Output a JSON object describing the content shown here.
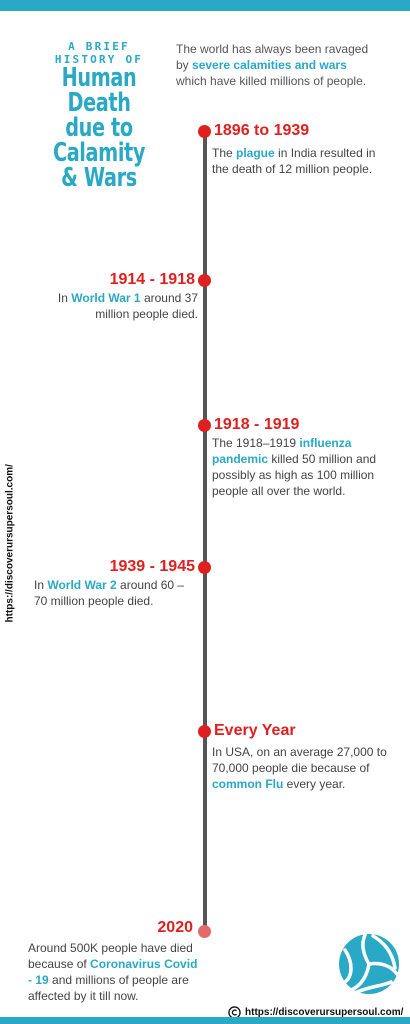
{
  "header": {
    "title_small": "A BRIEF HISTORY OF",
    "title_line1": "Human Death",
    "title_line2": "due to Calamity",
    "title_line3": "& Wars"
  },
  "intro": {
    "pre": "The world has always been ravaged by ",
    "highlight": "severe calamities and wars",
    "post": " which have killed millions of people."
  },
  "events": [
    {
      "year": "1896 to 1939",
      "pre": "The ",
      "highlight": "plague",
      "post": " in India resulted in the death of 12 million people."
    },
    {
      "year": "1914 - 1918",
      "pre": "In ",
      "highlight": "World War 1",
      "post": " around 37 million people died."
    },
    {
      "year": "1918 - 1919",
      "pre": "The 1918–1919 ",
      "highlight": "influenza pandemic",
      "post": " killed 50 million and possibly as high as 100 million people all over the world."
    },
    {
      "year": "1939 - 1945",
      "pre": "In ",
      "highlight": "World War 2",
      "post": " around 60 – 70 million people died."
    },
    {
      "year": "Every Year",
      "pre": "In USA, on an average 27,000 to 70,000 people die because of ",
      "highlight": "common Flu",
      "post": " every year."
    },
    {
      "year": "2020",
      "pre": "Around 500K people have died because of ",
      "highlight": "Coronavirus Covid - 19",
      "post": " and millions of people are affected by it till now."
    }
  ],
  "side_url": "https://discoverursupersoul.com/",
  "footer_url": "https://discoverursupersoul.com/",
  "colors": {
    "accent": "#29a9c5",
    "year": "#e02020",
    "line": "#555555"
  },
  "icons": [
    "volleyball-icon",
    "copyright-icon"
  ]
}
